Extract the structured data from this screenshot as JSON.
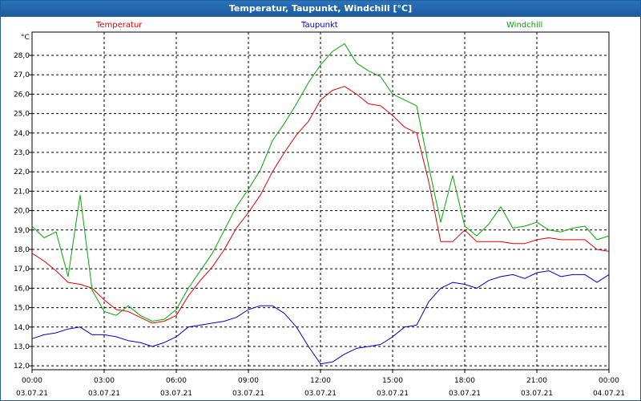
{
  "window": {
    "title": "Temperatur, Taupunkt, Windchill [°C]"
  },
  "colors": {
    "temperatur": "#e00000",
    "taupunkt": "#0000cc",
    "windchill": "#00aa00"
  },
  "chart_data": {
    "type": "line",
    "title": "Temperatur, Taupunkt, Windchill [°C]",
    "xlabel": "",
    "ylabel": "°C",
    "x_unit": "hours",
    "xlim": [
      0,
      24
    ],
    "ylim": [
      11.8,
      29.2
    ],
    "grid": true,
    "legend_placement": "top",
    "y_ticks": [
      "12,0",
      "13,0",
      "14,0",
      "15,0",
      "16,0",
      "17,0",
      "18,0",
      "19,0",
      "20,0",
      "21,0",
      "22,0",
      "23,0",
      "24,0",
      "25,0",
      "26,0",
      "27,0",
      "28,0"
    ],
    "x_ticks": [
      {
        "time": "00:00",
        "date": "03.07.21"
      },
      {
        "time": "03:00",
        "date": "03.07.21"
      },
      {
        "time": "06:00",
        "date": "03.07.21"
      },
      {
        "time": "09:00",
        "date": "03.07.21"
      },
      {
        "time": "12:00",
        "date": "03.07.21"
      },
      {
        "time": "15:00",
        "date": "03.07.21"
      },
      {
        "time": "18:00",
        "date": "03.07.21"
      },
      {
        "time": "21:00",
        "date": "03.07.21"
      },
      {
        "time": "00:00",
        "date": "04.07.21"
      }
    ],
    "x": [
      0,
      0.5,
      1,
      1.5,
      2,
      2.5,
      3,
      3.5,
      4,
      4.5,
      5,
      5.5,
      6,
      6.5,
      7,
      7.5,
      8,
      8.5,
      9,
      9.5,
      10,
      10.5,
      11,
      11.5,
      12,
      12.5,
      13,
      13.5,
      14,
      14.5,
      15,
      15.5,
      16,
      16.5,
      17,
      17.5,
      18,
      18.5,
      19,
      19.5,
      20,
      20.5,
      21,
      21.5,
      22,
      22.5,
      23,
      23.5,
      24
    ],
    "series": [
      {
        "name": "Temperatur",
        "key": "temperatur",
        "values": [
          17.8,
          17.4,
          16.9,
          16.3,
          16.2,
          16.0,
          15.4,
          14.9,
          14.8,
          14.5,
          14.2,
          14.3,
          14.6,
          15.6,
          16.4,
          17.1,
          18.0,
          19.1,
          19.9,
          20.8,
          22.0,
          23.0,
          23.9,
          24.6,
          25.7,
          26.2,
          26.4,
          26.0,
          25.5,
          25.4,
          24.9,
          24.3,
          24.0,
          21.5,
          18.4,
          18.4,
          19.0,
          18.4,
          18.4,
          18.4,
          18.3,
          18.3,
          18.5,
          18.6,
          18.5,
          18.5,
          18.5,
          18.0,
          17.9
        ]
      },
      {
        "name": "Taupunkt",
        "key": "taupunkt",
        "values": [
          13.4,
          13.6,
          13.7,
          13.9,
          14.0,
          13.6,
          13.6,
          13.5,
          13.3,
          13.2,
          13.0,
          13.2,
          13.5,
          14.0,
          14.1,
          14.2,
          14.3,
          14.5,
          14.9,
          15.1,
          15.1,
          14.7,
          14.0,
          13.0,
          12.1,
          12.2,
          12.6,
          12.9,
          13.0,
          13.1,
          13.5,
          14.0,
          14.1,
          15.3,
          16.0,
          16.3,
          16.2,
          16.0,
          16.4,
          16.6,
          16.7,
          16.5,
          16.8,
          16.9,
          16.6,
          16.7,
          16.7,
          16.3,
          16.7
        ]
      },
      {
        "name": "Windchill",
        "key": "windchill",
        "values": [
          19.2,
          18.6,
          18.9,
          16.6,
          20.8,
          15.9,
          14.8,
          14.6,
          15.1,
          14.6,
          14.3,
          14.4,
          14.9,
          16.0,
          16.9,
          17.8,
          19.0,
          20.2,
          21.1,
          22.1,
          23.6,
          24.5,
          25.5,
          26.6,
          27.5,
          28.2,
          28.6,
          27.6,
          27.2,
          26.9,
          26.0,
          25.7,
          25.4,
          22.3,
          19.4,
          21.8,
          19.2,
          18.7,
          19.3,
          20.2,
          19.1,
          19.2,
          19.4,
          19.0,
          18.9,
          19.1,
          19.2,
          18.5,
          18.7
        ]
      }
    ]
  }
}
